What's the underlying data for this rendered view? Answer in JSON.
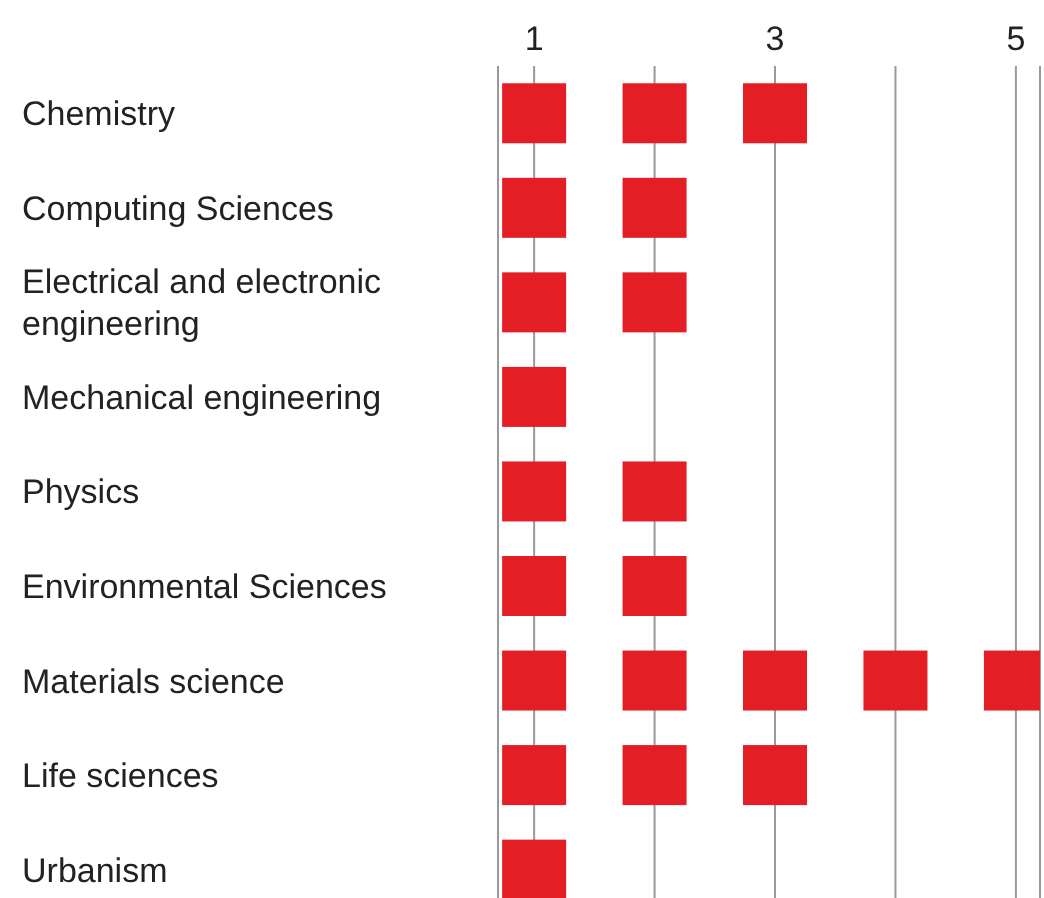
{
  "chart_data": {
    "type": "scatter",
    "orientation": "horizontal",
    "categories": [
      "Chemistry",
      "Computing Sciences",
      "Electrical and electronic engineering",
      "Mechanical engineering",
      "Physics",
      "Environmental Sciences",
      "Materials science",
      "Life sciences",
      "Urbanism"
    ],
    "series": [
      {
        "color": "#e31e24",
        "values": [
          1,
          1,
          1,
          1,
          1,
          1,
          1,
          1,
          1
        ]
      },
      {
        "color": "#e31e24",
        "values": [
          2,
          2,
          2,
          null,
          2,
          2,
          2,
          2,
          null
        ]
      },
      {
        "color": "#e31e24",
        "values": [
          3,
          null,
          null,
          null,
          null,
          null,
          3,
          3,
          null
        ]
      },
      {
        "color": "#e31e24",
        "values": [
          null,
          null,
          null,
          null,
          null,
          null,
          4,
          null,
          null
        ]
      },
      {
        "color": "#e31e24",
        "values": [
          null,
          null,
          null,
          null,
          null,
          null,
          5,
          null,
          null
        ]
      }
    ],
    "xlim": [
      0.7,
      5.2
    ],
    "xticks": [
      1,
      {
        "value": 2,
        "label": null
      },
      3,
      {
        "value": 4,
        "label": null
      },
      5
    ],
    "grid": "x",
    "marker": "square",
    "legend": false
  }
}
